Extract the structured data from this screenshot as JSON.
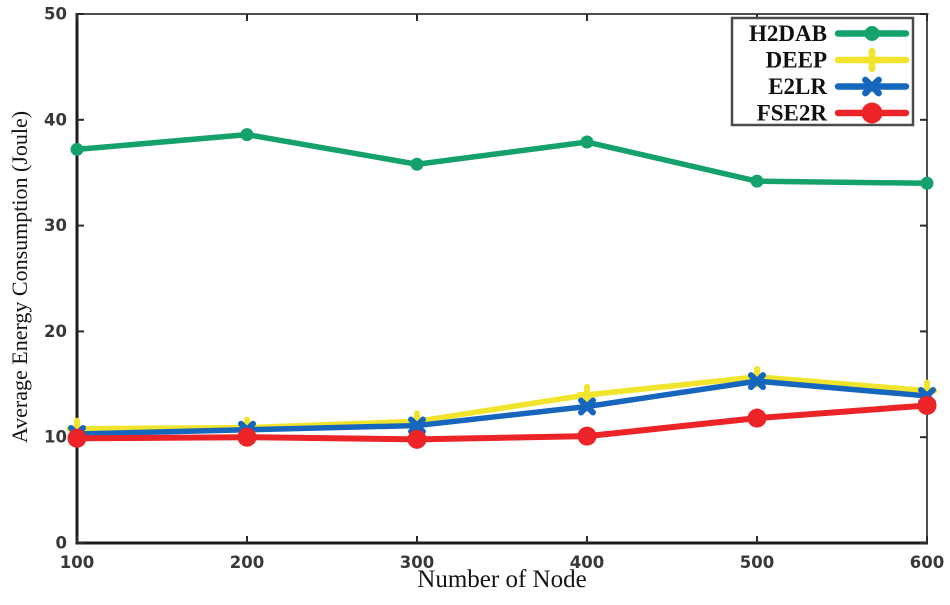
{
  "chart_data": {
    "type": "line",
    "title": "",
    "xlabel": "Number of Node",
    "ylabel": "Average Energy Consumption (Joule)",
    "x": [
      100,
      200,
      300,
      400,
      500,
      600
    ],
    "xticks": [
      "100",
      "200",
      "300",
      "400",
      "500",
      "600"
    ],
    "yticks": [
      "0",
      "10",
      "20",
      "30",
      "40",
      "50"
    ],
    "xlim": [
      100,
      600
    ],
    "ylim": [
      0,
      50
    ],
    "grid": false,
    "legend_position": "top-right",
    "draw_order": [
      1,
      2,
      3,
      0
    ],
    "series": [
      {
        "name": "H2DAB",
        "color": "#14A16C",
        "marker": "circle",
        "line_width": 5.5,
        "values": [
          37.2,
          38.6,
          35.8,
          37.9,
          34.2,
          34.0
        ]
      },
      {
        "name": "DEEP",
        "color": "#F1E42C",
        "marker": "plus",
        "line_width": 5.5,
        "values": [
          10.8,
          10.9,
          11.5,
          14.0,
          15.7,
          14.4
        ]
      },
      {
        "name": "E2LR",
        "color": "#1766BE",
        "marker": "x",
        "line_width": 5.5,
        "values": [
          10.3,
          10.7,
          11.1,
          12.9,
          15.3,
          13.9
        ]
      },
      {
        "name": "FSE2R",
        "color": "#EC2327",
        "marker": "circle-large",
        "line_width": 6.0,
        "values": [
          9.9,
          10.0,
          9.8,
          10.1,
          11.8,
          13.0
        ]
      }
    ],
    "style": {
      "frame_color_main": "#1c1c1c",
      "frame_color_light": "#4f4f4f",
      "tick_color": "#2b2b2b",
      "tick_label_color": "#383838",
      "legend_border_color": "#4a4a4a",
      "legend_text_color": "#111111",
      "background": "#ffffff"
    }
  }
}
